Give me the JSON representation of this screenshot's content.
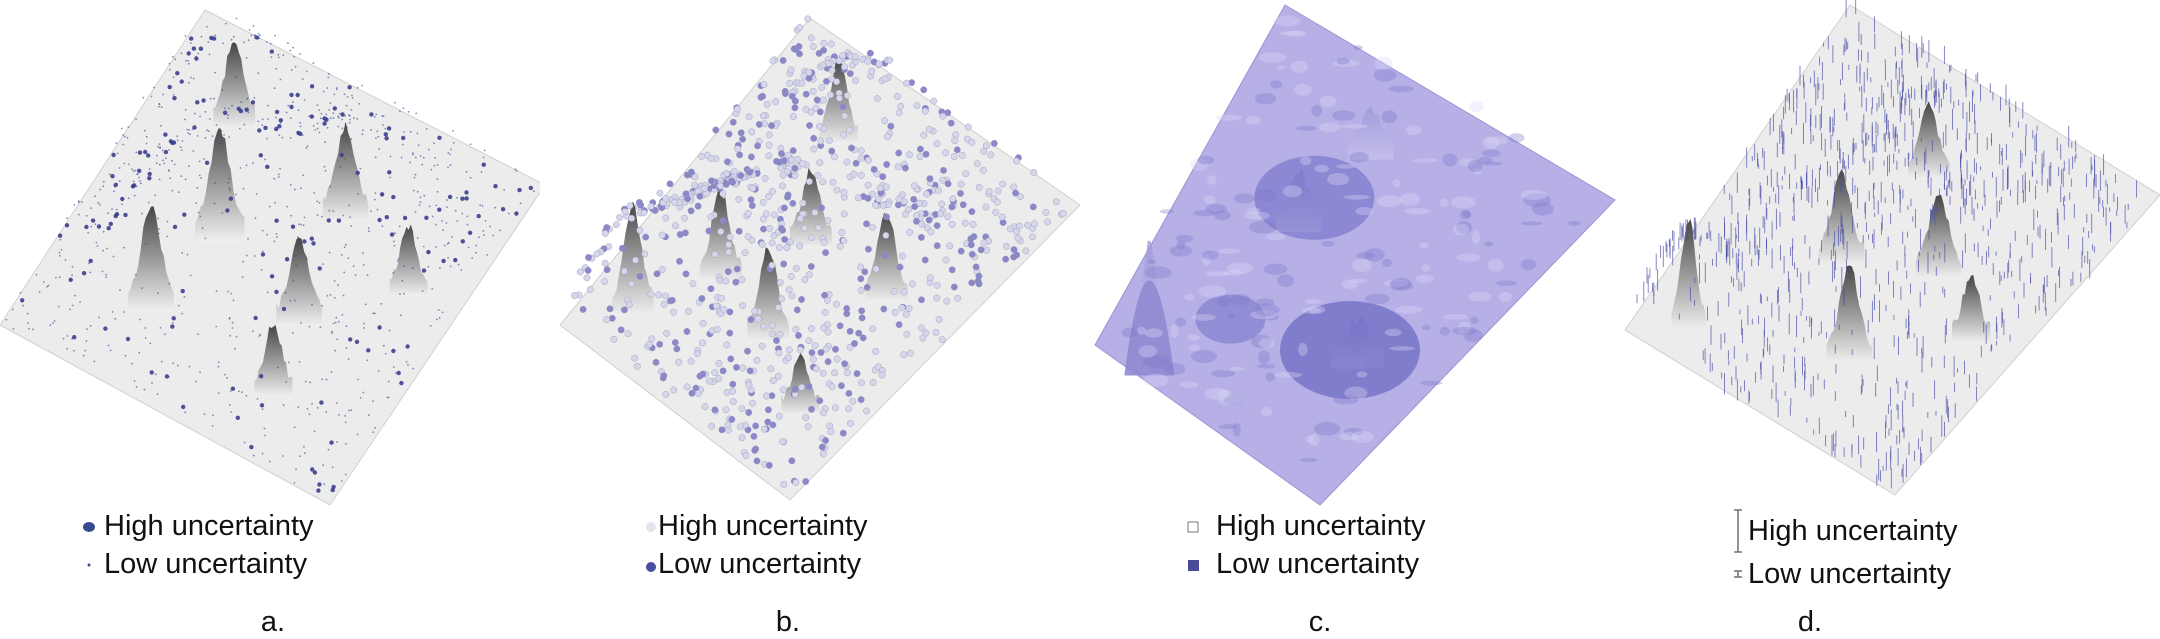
{
  "panels": [
    {
      "caption": "a.",
      "legend": {
        "high": "High uncertainty",
        "low": "Low uncertainty"
      },
      "style": "dots"
    },
    {
      "caption": "b.",
      "legend": {
        "high": "High uncertainty",
        "low": "Low uncertainty"
      },
      "style": "spheres"
    },
    {
      "caption": "c.",
      "legend": {
        "high": "High uncertainty",
        "low": "Low uncertainty"
      },
      "style": "color"
    },
    {
      "caption": "d.",
      "legend": {
        "high": "High uncertainty",
        "low": "Low uncertainty"
      },
      "style": "bars"
    }
  ],
  "colors": {
    "accent": "#3b3f8f",
    "glyph_light": "#d8d8e8",
    "surface_dark": "#3a3a3a",
    "surface_light": "#f2f2f2",
    "purple_light": "#b3aee0",
    "purple_dark": "#4a4ab0"
  }
}
